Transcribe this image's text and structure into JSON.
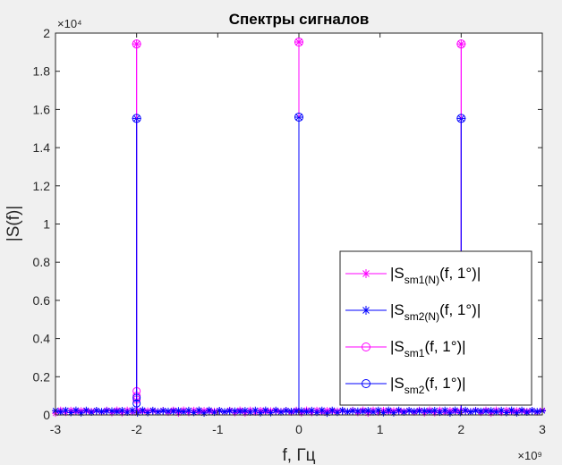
{
  "chart_data": {
    "type": "line",
    "title": "Спектры сигналов",
    "xlabel": "f, Гц",
    "ylabel": "|S(f)|",
    "x_exponent": "×10⁹",
    "y_exponent": "×10⁴",
    "xlim": [
      -3000000000.0,
      3000000000.0
    ],
    "ylim": [
      0,
      20000
    ],
    "x_ticks": [
      -3000000000.0,
      -2000000000.0,
      -1000000000.0,
      0,
      1000000000.0,
      2000000000.0,
      3000000000.0
    ],
    "x_tick_labels": [
      "-3",
      "-2",
      "-1",
      "0",
      "1",
      "2",
      "3"
    ],
    "y_ticks": [
      0,
      2000,
      4000,
      6000,
      8000,
      10000,
      12000,
      14000,
      16000,
      18000,
      20000
    ],
    "y_tick_labels": [
      "0",
      "0.2",
      "0.4",
      "0.6",
      "0.8",
      "1",
      "1.2",
      "1.4",
      "1.6",
      "1.8",
      "2"
    ],
    "grid": false,
    "legend_position": "bottom-right",
    "series": [
      {
        "name": "|Ssm1(N)(f, 1°)|",
        "legend_main": "|S",
        "legend_sub": "sm1(N)",
        "legend_tail": "(f, 1°)|",
        "color": "#ff00ff",
        "marker": "asterisk",
        "x": [
          -2000000000.0,
          0,
          2000000000.0
        ],
        "y": [
          19430,
          19530,
          19430
        ],
        "noise_level": 250
      },
      {
        "name": "|Ssm2(N)(f, 1°)|",
        "legend_main": "|S",
        "legend_sub": "sm2(N)",
        "legend_tail": "(f, 1°)|",
        "color": "#0000ff",
        "marker": "asterisk",
        "x": [
          -2000000000.0,
          0,
          2000000000.0
        ],
        "y": [
          15530,
          15600,
          15530
        ],
        "noise_level": 250
      },
      {
        "name": "|Ssm1(f, 1°)|",
        "legend_main": "|S",
        "legend_sub": "sm1",
        "legend_tail": "(f, 1°)|",
        "color": "#ff00ff",
        "marker": "circle",
        "x": [
          -2000000000.0,
          0,
          2000000000.0
        ],
        "y": [
          19430,
          19530,
          19430
        ],
        "minor_x": [
          -2000000000.0,
          -2000000000.0,
          -2000000000.0
        ],
        "minor_y": [
          1250,
          1000,
          800
        ]
      },
      {
        "name": "|Ssm2(f, 1°)|",
        "legend_main": "|S",
        "legend_sub": "sm2",
        "legend_tail": "(f, 1°)|",
        "color": "#0000ff",
        "marker": "circle",
        "x": [
          -2000000000.0,
          0,
          2000000000.0
        ],
        "y": [
          15530,
          15600,
          15530
        ],
        "minor_x": [
          -2000000000.0,
          -2000000000.0
        ],
        "minor_y": [
          900,
          600
        ]
      }
    ]
  }
}
